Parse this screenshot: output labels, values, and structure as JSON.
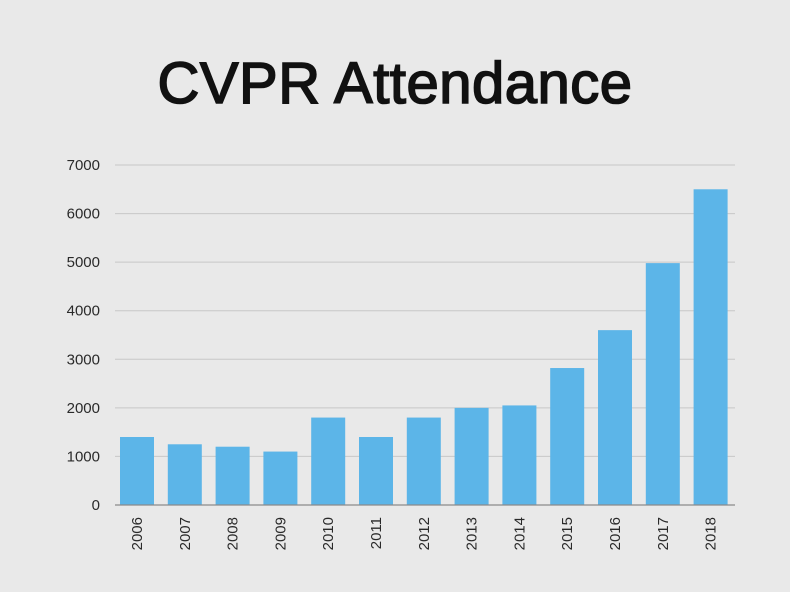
{
  "title": "CVPR Attendance",
  "colors": {
    "background": "#e9e9e9",
    "bar": "#5cb5e8",
    "grid": "#c7c7c7",
    "axis": "#8a8a8a",
    "text": "#111111"
  },
  "chart_data": {
    "type": "bar",
    "title": "CVPR Attendance",
    "xlabel": "",
    "ylabel": "",
    "categories": [
      "2006",
      "2007",
      "2008",
      "2009",
      "2010",
      "2011",
      "2012",
      "2013",
      "2014",
      "2015",
      "2016",
      "2017",
      "2018"
    ],
    "values": [
      1400,
      1250,
      1200,
      1100,
      1800,
      1400,
      1800,
      2000,
      2050,
      2820,
      3600,
      4980,
      6500
    ],
    "ylim": [
      0,
      7000
    ],
    "yticks": [
      "0",
      "1000",
      "2000",
      "3000",
      "4000",
      "5000",
      "6000",
      "7000"
    ],
    "grid": true,
    "legend": "none"
  }
}
